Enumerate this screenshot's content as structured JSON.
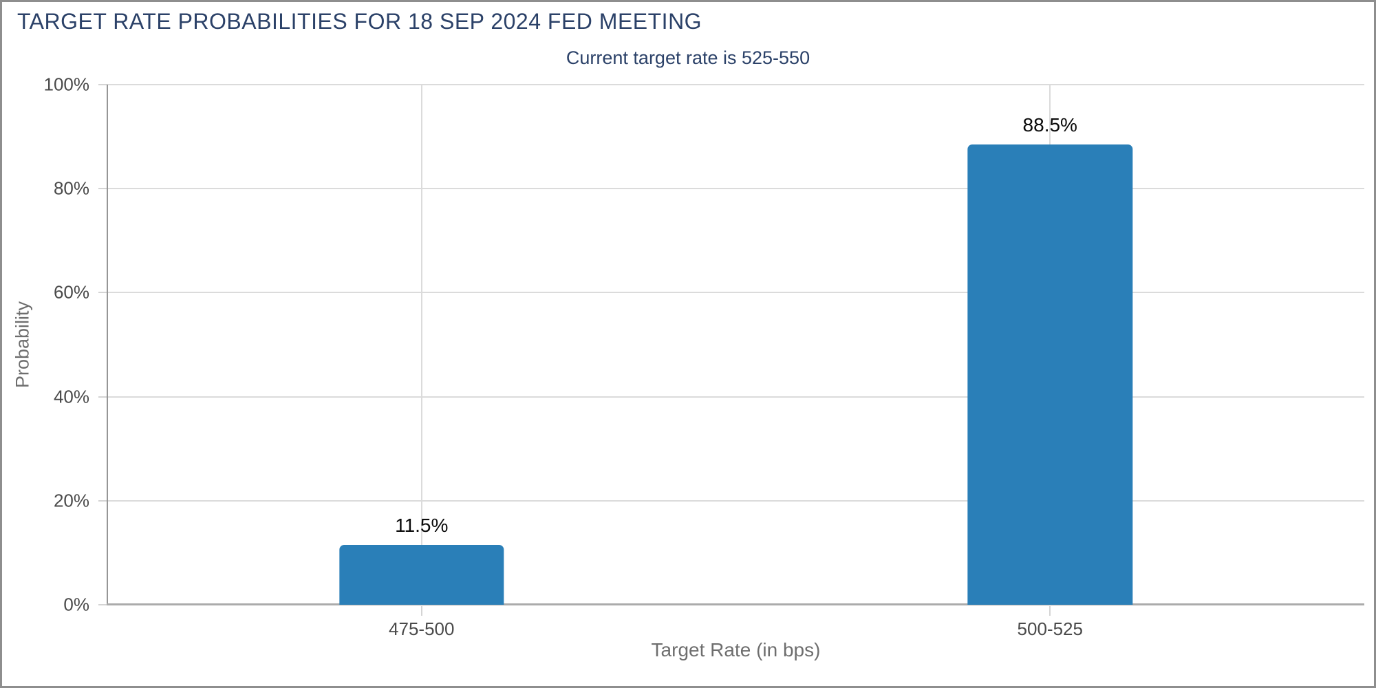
{
  "colors": {
    "bar": "#2A7FB8",
    "heading": "#2B4168",
    "grid": "#DBDBDB",
    "y_axis_line": "#969696",
    "x_axis_line": "#ABABAB",
    "tick_label": "#4A4A4A",
    "axis_title": "#6E6E6E",
    "value_label": "#0A0A0A",
    "page_border": "#8E8E8E"
  },
  "chart_data": {
    "type": "bar",
    "title": "TARGET RATE PROBABILITIES FOR 18 SEP 2024 FED MEETING",
    "subtitle": "Current target rate is 525-550",
    "categories": [
      "475-500",
      "500-525"
    ],
    "values": [
      11.5,
      88.5
    ],
    "value_labels": [
      "11.5%",
      "88.5%"
    ],
    "xlabel": "Target Rate (in bps)",
    "ylabel": "Probability",
    "ylim": [
      0,
      100
    ],
    "yticks": [
      0,
      20,
      40,
      60,
      80,
      100
    ],
    "ytick_labels": [
      "0%",
      "20%",
      "40%",
      "60%",
      "80%",
      "100%"
    ],
    "grid": true,
    "legend_position": "none",
    "bar_color": "#2A7FB8"
  }
}
